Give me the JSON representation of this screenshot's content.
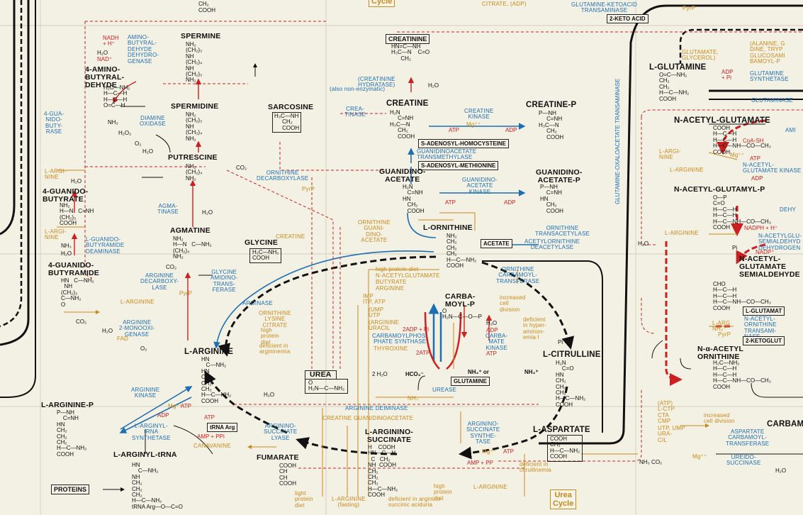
{
  "compounds": {
    "creatinine": "CREATININE",
    "creatine": "CREATINE",
    "creatine_p": "CREATINE-P",
    "sarcosine": "SARCOSINE",
    "guanidinoacetate": "GUANIDINO-\nACETATE",
    "guanidinoacetate_p": "GUANIDINO-\nACETATE-P",
    "spermine": "SPERMINE",
    "spermidine": "SPERMIDINE",
    "putrescine": "PUTRESCINE",
    "aminobutyraldehyde": "4-AMINO-\nBUTYRAL-\nDEHYDE",
    "guanidobutyrate": "4-GUANIDO-\nBUTYRATE",
    "guanidobutyramide": "4-GUANIDO-\nBUTYRAMIDE",
    "agmatine": "AGMATINE",
    "glycine": "GLYCINE",
    "l_ornithine": "L-ORNITHINE",
    "l_arginine": "L-ARGININE",
    "urea": "UREA",
    "carbamoyl_p": "CARBA-\nMOYL-P",
    "l_citrulline": "L-CITRULLINE",
    "l_argininosuccinate": "L-ARGININO-\nSUCCINATE",
    "fumarate": "FUMARATE",
    "l_aspartate": "L-ASPARTATE",
    "l_arginine_p": "L-ARGININE-P",
    "l_arginyl_trna": "L-ARGINYL-tRNA",
    "l_glutamine": "L-GLUTAMINE",
    "n_acetyl_glutamate": "N-ACETYL-GLUTAMATE",
    "n_acetyl_glutamyl_p": "N-ACETYL-GLUTAMYL-P",
    "n_acetyl_glutamate_semialdehyde": "N-ACETYL-\nGLUTAMATE\nSEMIALDEHYDE",
    "n_alpha_acetyl_ornithine": "N-α-ACETYL\nORNITHINE",
    "carbam": "CARBAM"
  },
  "enzymes": {
    "aminobutyraldehyde_dh": "AMINO-\nBUTYRAL-\nDEHYDE\nDEHYDRO-\nGENASE",
    "diamine_oxidase": "DIAMINE\nOXIDASE",
    "guanidobutyrase": "4-GUA-\nNIDO-\nBUTY-\nRASE",
    "creatinine_hydratase": "(CREATININE\nHYDRATASE)",
    "creatine_kinase": "CREATINE\nKINASE",
    "creatinase": "CREA-\nTINASE",
    "guanidinoacetate_transmethylase": "GUANIDINOACETATE\nTRANSMETHYLASE",
    "guanidinoacetate_kinase": "GUANIDINO-\nACETATE\nKINASE",
    "ornithine_decarboxylase": "ORNITHINE\nDECARBOXYLASE",
    "agmatinase": "AGMA-\nTINASE",
    "arginine_decarboxylase": "ARGININE\nDECARBOXY-\nLASE",
    "glycine_amidinotransferase": "GLYCINE\nAMIDINO-\nTRANS-\nFERASE",
    "guanidobutyramide_deaminase": "L-GUANIDO-\nBUTYRAMIDE\nDEAMINASE",
    "arginine_monooxigenase": "ARGININE\n2-MONOOXI-\nGENASE",
    "arginase": "ARGINASE",
    "ornithine_transacetylase": "ORNITHINE\nTRANSACETYLASE",
    "acetylornithine_deacetylase": "ACETYLORNITHINE\nDEACETYLASE",
    "ornithine_carbamoyltransferase": "ORNITHINE\nCARBAMOYL-\nTRANSFERASE",
    "carbamoylphosphate_synthase": "CARBAMOYLPHOS-\nPHATE SYNTHASE",
    "carbamate_kinase": "CARBA-\nMATE\nKINASE",
    "urease": "UREASE",
    "arginine_deiminase": "ARGININE DEIMINASE",
    "arginine_kinase": "ARGININE\nKINASE",
    "l_arginyl_trna_synthetase": "L-ARGINYL-\ntRNA\nSYNTHETASE",
    "argininosuccinate_lyase": "ARGININO-\nSUCCINATE\nLYASE",
    "argininosuccinate_synthetase": "ARGININO-\nSUCCINATE\nSYNTHE-\nTASE",
    "aspartate_carbamoyltransferase": "ASPARTATE\nCARBAMOYL-\nTRANSFERASE",
    "ureidosuccinase": "UREIDO-\nSUCCINASE",
    "glutamine_ketoacid_transaminase": "GLUTAMINE-KETOACID\nTRANSAMINASE",
    "glutamine_oxaloacetate_transaminase_vert": "GLUTAMINE-OXALOACETATE TRANSAMINASE",
    "glutamine_synthetase": "GLUTAMINE\nSYNTHETASE",
    "glutaminase": "GLUTAMINASE",
    "acetylglutamate_kinase": "N-ACETYL-\nGLUTAMATE KINASE",
    "acetylglutamyl_semialdehyde_dh": "N-ACETYLGLU-\nSEMIALDEHYD\nDEHYDROGEN",
    "acetylornithine_transaminase": "N-ACETYL-\nORNITHINE\nTRANSAMI-\nNASE",
    "aminase_short": "AMI",
    "dehy_short": "DEHY"
  },
  "boxes": {
    "s_adenosyl_homocysteine": "S-ADENOSYL-HOMOCYSTEINE",
    "s_adenosyl_methionine": "S-ADENOSYL-METHIONINE",
    "acetate": "ACETATE",
    "glutamine_box": "GLUTAMINE",
    "proteins": "PROTEINS",
    "trna_arg": "tRNA Arg",
    "two_keto_acid": "2-KETO ACID",
    "l_glutamate_box": "L-GLUTAMAT",
    "two_ketoglut": "2-KETOGLUT",
    "urea_cycle_top": "Cycle",
    "urea_cycle_bottom": "Urea\nCycle"
  },
  "regulators": {
    "high_protein_diet": "high protein diet",
    "n_acetylglutamate": "N-ACETYLGLUTAMATE",
    "butyrate": "BUTYRATE",
    "arginine_org": "ARGININE",
    "imp_itp": "IMP\nITP, ATP",
    "ump_utp": "(UMP\nUTP",
    "arginine_uracil": "(ARGININE\nURACIL",
    "thyroxine": "THYROXINE",
    "increased_cell_division": "increased\ncell\ndivision",
    "deficient_hyperammonemia": "deficient\nin hyper-\nammon-\nemia I",
    "ornithine_lysine_citrate": "ORNITHINE\nLYSINE\nCITRATE",
    "high_protein_diet2": "high\nprotein\ndiet",
    "deficient_argininemia": "deficient in\nargininemia",
    "creatine_org": "CREATINE",
    "ornithine_guanidinoacetate": "ORNITHINE\nGUANI-\nDINO-\nACETATE",
    "canavanine": "CANAVANINE",
    "creatine_guanidinoacetate": "CREATINE GUANIDINOACETATE",
    "l_arginine_org": "L-ARGININE",
    "l_arginine_org2": "L-ARGININE",
    "l_arginine_org3": "L-ARGI-\nNINE",
    "l_arginine_org4": "L-ARGI-\nNINE",
    "l_arginine_org5": "L-ARGININE",
    "l_arginine_org6": "L-ARGININE",
    "l_arginine_org7": "L-ARG\nNH₄⁺",
    "high_protein_diet3": "high\nprotein\ndiet",
    "deficient_citrullinemia": "deficient in\ncitrullinemia",
    "deficient_argininosuccinic": "deficient in arginino-\nsuccinic aciduria",
    "l_arginine_fasting": "L-ARGININE\n(fasting)",
    "atp_ctp_stuff": "(ATP)\nL-CTP\nCTA\nCMP",
    "increased_cell_division2": "increased\ncell division",
    "utp_ump_uracil": "UTP, UMP\nURA-\nCIL",
    "glutamate_glycerol": "GLUTAMATE,\nGLYCEROL)",
    "alanine_etc": "(ALANINE, G\nDINE, TRYP\nGLUCOSAMI\nBAMOYL-P",
    "citrate_adp": "CITRATE, (ADP)",
    "pyrp": "PyrP",
    "mg": "Mg⁺⁺",
    "light_diet": "light\nprotein\ndiet"
  },
  "cofactors": {
    "nadh_h": "NADH\n+ H⁺",
    "nad": "NAD⁺",
    "h2o": "H₂O",
    "h2o2": "H₂O₂",
    "o2": "O₂",
    "nh3": "NH₃",
    "co2": "CO₂",
    "atp": "ATP",
    "adp": "ADP",
    "mg": "Mg⁺⁺",
    "pi": "Pi",
    "two_adp_pi": "2ADP + Pi",
    "two_atp": "2ATP",
    "two_h2o": "2 H₂O",
    "hco3": "HCO₃⁻",
    "nh4_or": "NH₄⁺ or",
    "nh4": "NH₄⁺",
    "amp_ppi": "AMP + PPi",
    "amp_pp": "AMP + PP",
    "nh3_co2": "NH₃   CO₂",
    "fad": "FAD",
    "pyrp": "PyrP",
    "coa_sh": "CoA-SH",
    "nadph": "NADPH + H⁺",
    "nadp": "NADP⁺",
    "atp_pi_adp": "ADP\n+ Pi",
    "also_non_enzymatic": "(also non-enzymatic)"
  },
  "formulas": {
    "creatinine": "HN=C—NH\nH₃C—N    C=O\n      CH₂",
    "creatine": "H₂N\n     C=NH\nH₃C—N\n     CH₂\n     COOH",
    "creatine_p": "P—NH\n     C=NH\nH₃C—N\n     CH₂\n     COOH",
    "sarcosine": "H₃C—NH\n     CH₂\n     COOH",
    "guanidinoacetate": "H₂N\n   C=NH\nHN\n   CH₂\n   COOH",
    "guanidinoacetate_p": "P—NH\n    C=NH\nHN\n    CH₂\n    COOH",
    "spermine": "NH₂\n(CH₂)₃\nNH\n(CH₂)₄\nNH\n(CH₂)₃\nNH₂",
    "spermidine": "NH₂\n(CH₂)₃\nNH\n(CH₂)₄\nNH₂",
    "putrescine": "NH₂\n(CH₂)₄\nNH₂",
    "aminobutyraldehyde": "H₂C—NH₂\nH—C—H\nH—C—H\nO=C—H",
    "guanidobutyrate": "NH₂\nH—N   C=NH\n(CH₂)₃\nCOOH",
    "guanidobutyramide": "HN   C—NH₂\n  NH\n(CH₂)₃\nC—NH₂\nO",
    "agmatine": "NH₂\nH—N   C—NH₂\n(CH₂)₄\nNH₂",
    "glycine": "H₂C—NH₂\nCOOH",
    "l_ornithine": "NH₂\nCH₂\nCH₂\nCH₂\nH—C—NH₂\nCOOH",
    "l_arginine": "HN\n   C—NH₂\nHN\nCH₂\nCH₂\nCH₂\nH—C—NH₂\nCOOH",
    "urea": "O\nH₂N—C—NH₂",
    "carbamoyl_p": "O\nH₂N—C—O—P",
    "l_citrulline": "H₂N\n    C=O\nHN\nCH₂\nCH₂\nCH₂\nH—C—NH₂\nCOOH",
    "l_argininosuccinate": "H    COOH\nHN—C—H\n  C   CH₂\nNH  COOH\nCH₂\nCH₂\nCH₂\nH—C—NH₂\nCOOH",
    "fumarate": "COOH\nCH\nCH\nCOOH",
    "l_aspartate": "COOH\nCH₂\nH—C—NH₂\nCOOH",
    "l_arginine_p": "P—NH\n    C=NH\nHN\nCH₂\nCH₂\nCH₂\nH—C—NH₂\nCOOH",
    "l_arginyl_trna": "HN\n    C—NH₂\nNH\nCH₂\nCH₂\nCH₂\nH—C—NH₂\ntRNA Arg—O—C=O",
    "l_glutamine": "O=C—NH₂\nCH₂\nCH₂\nH—C—NH₂\nCOOH",
    "n_acetyl_glutamate": "COOH\nH—C—H\nH—C—H\nH—C—NH—CO—CH₃\nCOOH",
    "n_acetyl_glutamyl_p": "O—P\nC=O\nH—C—H\nH—C—H\nH—C—NH—CO—CH₃\nCOOH",
    "n_acetyl_glutamate_semialdehyde": "CHO\nH—C—H\nH—C—H\nH—C—NH—CO—CH₃\nCOOH",
    "n_alpha_acetyl_ornithine": "H₂C—NH₂\nH—C—H\nH—C—H\nH—C—NH—CO—CH₃\nCOOH",
    "top_fragment": "COOH\nCH₂\nCOOH"
  }
}
